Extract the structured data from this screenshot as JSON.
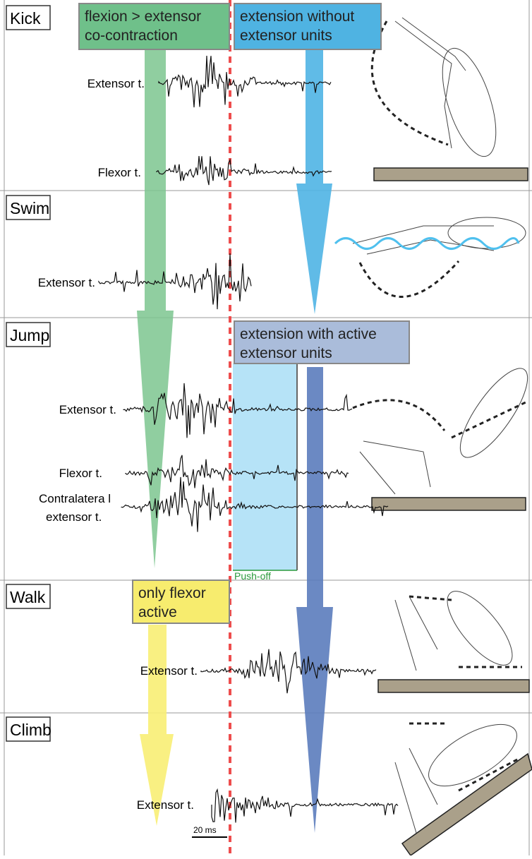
{
  "panels": [
    {
      "label": "Kick",
      "traces": [
        [
          "Extensor t."
        ],
        [
          "Flexor t."
        ]
      ]
    },
    {
      "label": "Swim",
      "traces": [
        [
          "Extensor t."
        ]
      ]
    },
    {
      "label": "Jump",
      "traces": [
        [
          "Extensor t."
        ],
        [
          "Flexor t."
        ],
        [
          "Contralatera l",
          "extensor t."
        ]
      ]
    },
    {
      "label": "Walk",
      "traces": [
        [
          "Extensor t."
        ]
      ]
    },
    {
      "label": "Climb",
      "traces": [
        [
          "Extensor t."
        ]
      ]
    }
  ],
  "boxes": [
    {
      "lines": [
        "flexion > extensor",
        "co-contraction"
      ]
    },
    {
      "lines": [
        "extension without",
        "extensor units"
      ]
    },
    {
      "lines": [
        "extension with active",
        "extensor units"
      ]
    },
    {
      "lines": [
        "only flexor",
        "active"
      ]
    }
  ],
  "push_off": "Push-off",
  "scale_bar": "20 ms"
}
